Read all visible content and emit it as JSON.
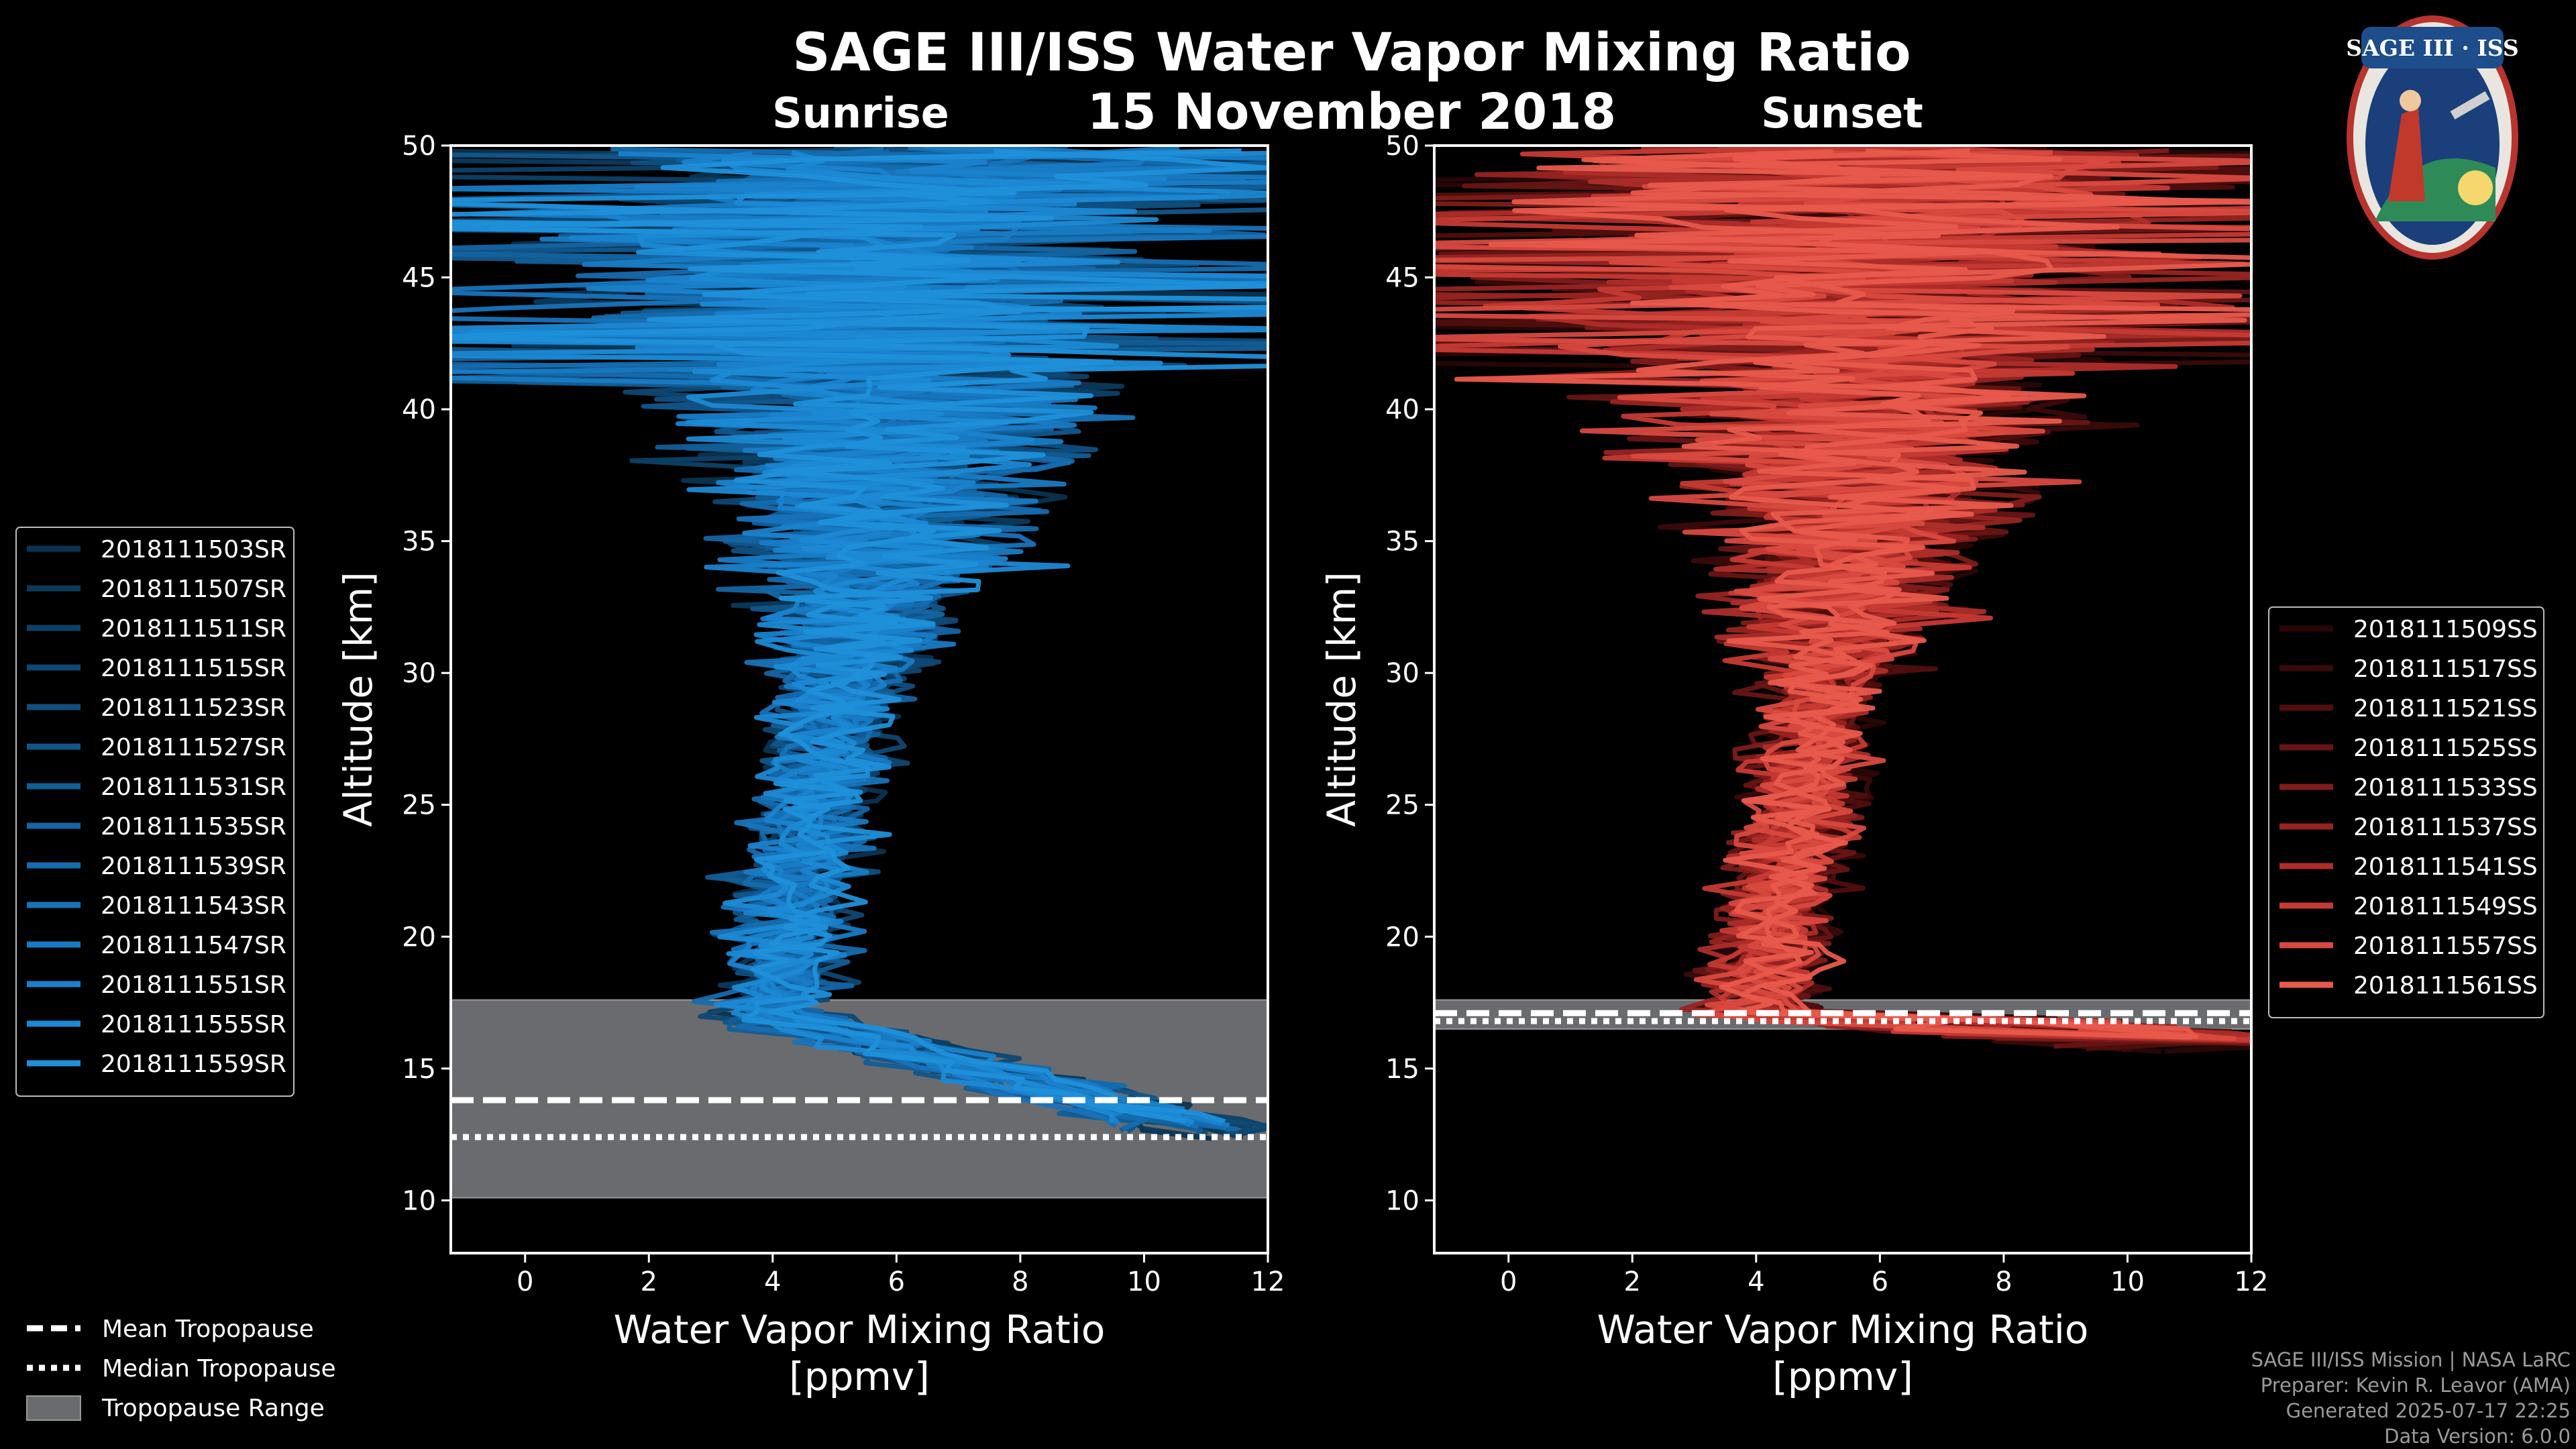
{
  "title": "SAGE III/ISS Water Vapor Mixing Ratio",
  "date": "15 November 2018",
  "logo": {
    "text": "SAGE III · ISS",
    "alt": "SAGE III ISS mission patch"
  },
  "credits": [
    "SAGE III/ISS Mission | NASA LaRC",
    "Preparer: Kevin R. Leavor (AMA)",
    "Generated 2025-07-17 22:25",
    "Data Version: 6.0.0"
  ],
  "colors": {
    "sunrise": "#1f8fd8",
    "sunset": "#e55b4b",
    "background": "#000000",
    "tropopause_range": "#6a6b6e"
  },
  "common_legend": {
    "mean": "Mean Tropopause",
    "median": "Median Tropopause",
    "range": "Tropopause Range"
  },
  "chart_data": [
    {
      "type": "line",
      "panel": "sunrise",
      "subtitle": "Sunrise",
      "xlabel": "Water Vapor Mixing Ratio",
      "xunits": "[ppmv]",
      "ylabel": "Altitude [km]",
      "xlim": [
        -1.2,
        12
      ],
      "ylim": [
        8,
        50
      ],
      "xticks": [
        0,
        2,
        4,
        6,
        8,
        10,
        12
      ],
      "yticks": [
        10,
        15,
        20,
        25,
        30,
        35,
        40,
        45,
        50
      ],
      "tropopause": {
        "mean": 13.8,
        "median": 12.4,
        "range": [
          10.1,
          17.6
        ]
      },
      "legend_position": "left",
      "series": [
        {
          "name": "2018111503SR",
          "color": "#0a3350"
        },
        {
          "name": "2018111507SR",
          "color": "#0b3a5c"
        },
        {
          "name": "2018111511SR",
          "color": "#0c4167"
        },
        {
          "name": "2018111515SR",
          "color": "#0e4873"
        },
        {
          "name": "2018111523SR",
          "color": "#0f4f7f"
        },
        {
          "name": "2018111527SR",
          "color": "#11568b"
        },
        {
          "name": "2018111531SR",
          "color": "#125e97"
        },
        {
          "name": "2018111535SR",
          "color": "#1465a3"
        },
        {
          "name": "2018111539SR",
          "color": "#156cae"
        },
        {
          "name": "2018111543SR",
          "color": "#1773ba"
        },
        {
          "name": "2018111547SR",
          "color": "#187bc4"
        },
        {
          "name": "2018111551SR",
          "color": "#1a82cd"
        },
        {
          "name": "2018111555SR",
          "color": "#1c89d4"
        },
        {
          "name": "2018111559SR",
          "color": "#1f90da"
        }
      ]
    },
    {
      "type": "line",
      "panel": "sunset",
      "subtitle": "Sunset",
      "xlabel": "Water Vapor Mixing Ratio",
      "xunits": "[ppmv]",
      "ylabel": "Altitude [km]",
      "xlim": [
        -1.2,
        12
      ],
      "ylim": [
        8,
        50
      ],
      "xticks": [
        0,
        2,
        4,
        6,
        8,
        10,
        12
      ],
      "yticks": [
        10,
        15,
        20,
        25,
        30,
        35,
        40,
        45,
        50
      ],
      "tropopause": {
        "mean": 17.1,
        "median": 16.8,
        "range": [
          16.5,
          17.6
        ]
      },
      "legend_position": "right",
      "series": [
        {
          "name": "2018111509SS",
          "color": "#2a0606"
        },
        {
          "name": "2018111517SS",
          "color": "#3a0a0a"
        },
        {
          "name": "2018111521SS",
          "color": "#4f0f0e"
        },
        {
          "name": "2018111525SS",
          "color": "#661514"
        },
        {
          "name": "2018111533SS",
          "color": "#7e1c1a"
        },
        {
          "name": "2018111537SS",
          "color": "#962421"
        },
        {
          "name": "2018111541SS",
          "color": "#ad2d29"
        },
        {
          "name": "2018111549SS",
          "color": "#c53a33"
        },
        {
          "name": "2018111557SS",
          "color": "#d8493f"
        },
        {
          "name": "2018111561SS",
          "color": "#e85a4c"
        }
      ]
    }
  ]
}
